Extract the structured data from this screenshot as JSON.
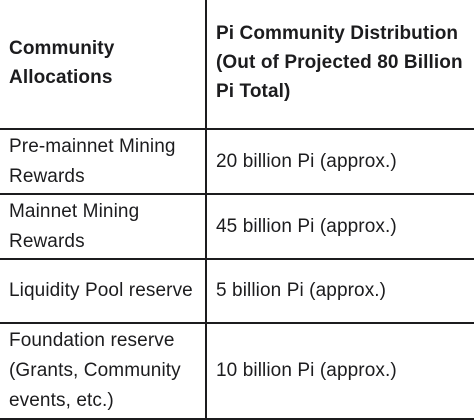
{
  "table": {
    "headers": [
      "Community Allocations",
      "Pi Community Distribution (Out of Projected 80 Billion Pi Total)"
    ],
    "rows": [
      {
        "allocation": "Pre-mainnet Mining Rewards",
        "distribution": "20 billion Pi (approx.)"
      },
      {
        "allocation": "Mainnet Mining Rewards",
        "distribution": "45 billion Pi (approx.)"
      },
      {
        "allocation": "Liquidity Pool reserve",
        "distribution": "5 billion Pi (approx.)"
      },
      {
        "allocation": "Foundation reserve (Grants, Community events, etc.)",
        "distribution": "10 billion Pi (approx.)"
      }
    ]
  }
}
